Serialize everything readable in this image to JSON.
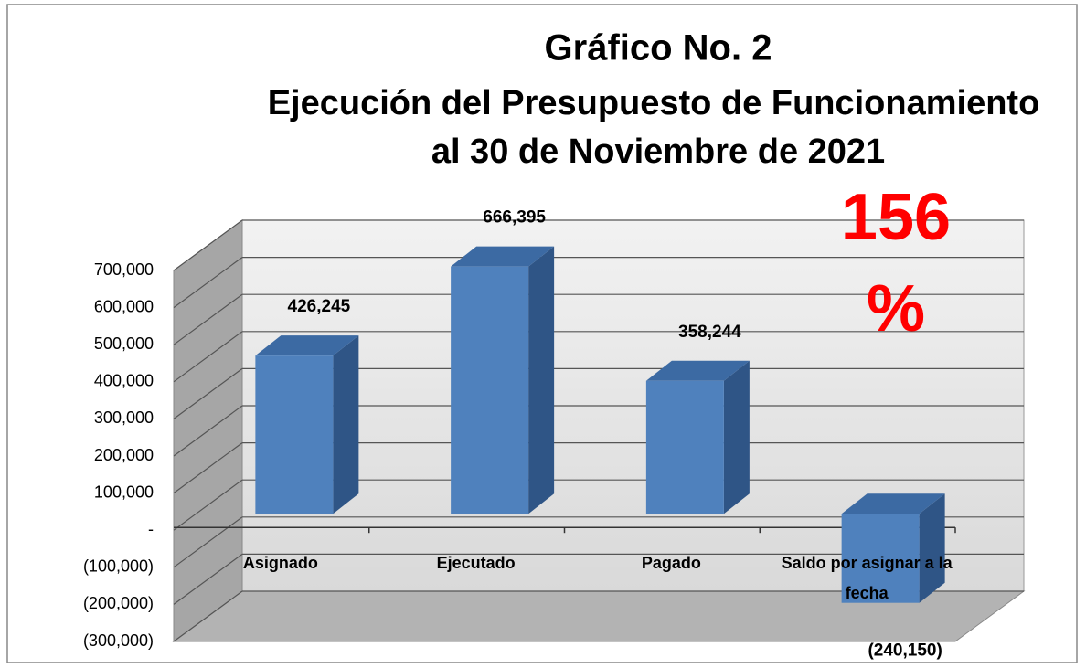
{
  "chart_data": {
    "type": "bar3d",
    "title": [
      "Gráfico No. 2",
      "Ejecución del Presupuesto de Funcionamiento",
      "al 30 de Noviembre de 2021"
    ],
    "annotations": [
      "156",
      "%"
    ],
    "annotation_color": "#ff0000",
    "categories": [
      "Asignado",
      "Ejecutado",
      "Pagado",
      "Saldo por asignar a la fecha"
    ],
    "values": [
      426245,
      666395,
      358244,
      -240150
    ],
    "value_labels": [
      "426,245",
      "666,395",
      "358,244",
      "(240,150)"
    ],
    "color": "#4f81bd",
    "ylim": [
      -300000,
      700000
    ],
    "yticks": [
      {
        "value": -300000,
        "label": "(300,000)"
      },
      {
        "value": -200000,
        "label": "(200,000)"
      },
      {
        "value": -100000,
        "label": "(100,000)"
      },
      {
        "value": 0,
        "label": "-"
      },
      {
        "value": 100000,
        "label": "100,000"
      },
      {
        "value": 200000,
        "label": "200,000"
      },
      {
        "value": 300000,
        "label": "300,000"
      },
      {
        "value": 400000,
        "label": "400,000"
      },
      {
        "value": 500000,
        "label": "500,000"
      },
      {
        "value": 600000,
        "label": "600,000"
      },
      {
        "value": 700000,
        "label": "700,000"
      }
    ],
    "grid": true
  }
}
